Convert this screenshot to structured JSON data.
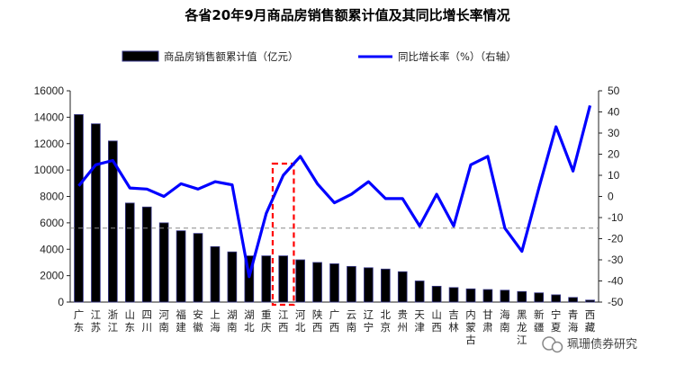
{
  "chart_data": {
    "type": "bar",
    "title": "各省20年9月商品房销售额累计值及其同比增长率情况",
    "categories": [
      "广东",
      "江苏",
      "浙江",
      "山东",
      "四川",
      "河南",
      "福建",
      "安徽",
      "上海",
      "湖南",
      "湖北",
      "重庆",
      "江西",
      "河北",
      "陕西",
      "广西",
      "云南",
      "辽宁",
      "北京",
      "贵州",
      "天津",
      "山西",
      "吉林",
      "内蒙古",
      "甘肃",
      "海南",
      "黑龙江",
      "新疆",
      "宁夏",
      "青海",
      "西藏"
    ],
    "series": [
      {
        "name": "商品房销售额累计值（亿元）",
        "type": "bar",
        "axis": "left",
        "color": "#000000",
        "values": [
          14200,
          13500,
          12200,
          7500,
          7200,
          6000,
          5400,
          5200,
          4200,
          3800,
          3500,
          3500,
          3500,
          3200,
          3000,
          2900,
          2700,
          2600,
          2500,
          2300,
          1600,
          1200,
          1100,
          1000,
          950,
          900,
          800,
          700,
          550,
          350,
          150
        ]
      },
      {
        "name": "同比增长率（%）（右轴）",
        "type": "line",
        "axis": "right",
        "color": "#0000ff",
        "values": [
          5,
          15,
          17,
          4,
          3.5,
          0,
          6,
          3.5,
          7,
          5.5,
          -38,
          -8,
          10,
          19,
          6,
          -3,
          1,
          7,
          -1,
          -1,
          -14,
          1,
          -14,
          15,
          19,
          -15,
          -26,
          4,
          33,
          12,
          43
        ]
      }
    ],
    "y_left": {
      "min": 0,
      "max": 16000,
      "step": 2000,
      "ticks": [
        "0",
        "2000",
        "4000",
        "6000",
        "8000",
        "10000",
        "12000",
        "14000",
        "16000"
      ]
    },
    "y_right": {
      "min": -50,
      "max": 50,
      "step": 10,
      "ticks": [
        "-50",
        "-40",
        "-30",
        "-20",
        "-10",
        "0",
        "10",
        "20",
        "30",
        "40",
        "50"
      ]
    },
    "reference_line": {
      "axis": "right",
      "value": -15,
      "style": "dashed",
      "color": "#888888"
    },
    "highlight": {
      "category": "江西",
      "color": "#ff0000",
      "style": "dashed"
    },
    "legend_position": "top"
  },
  "legend": {
    "bar_label": "商品房销售额累计值（亿元）",
    "line_label": "同比增长率（%）（右轴）"
  },
  "watermark": {
    "text": "珮珊债券研究",
    "icon": "wechat-icon"
  }
}
